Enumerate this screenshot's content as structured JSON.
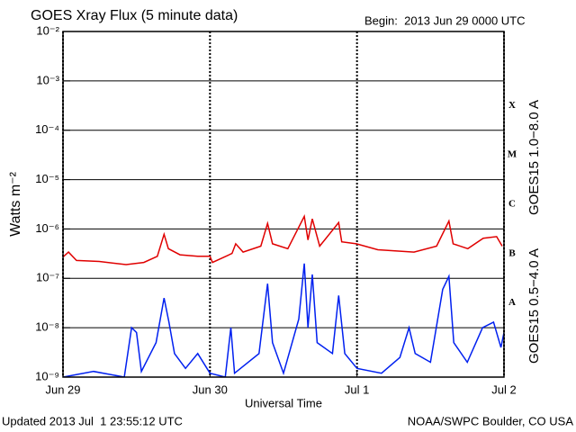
{
  "chart_data": {
    "type": "line",
    "title": "GOES Xray Flux (5 minute data)",
    "subtitle": "Begin:  2013 Jun 29 0000 UTC",
    "x_label": "Universal Time",
    "y_label": "Watts m⁻²",
    "footer_left": "Updated 2013 Jul  1 23:55:12 UTC",
    "footer_right": "NOAA/SWPC Boulder, CO USA",
    "log_y": true,
    "grid": true,
    "xlim": [
      0,
      72
    ],
    "xticks": [
      {
        "value": 0,
        "label": "Jun 29"
      },
      {
        "value": 24,
        "label": "Jun 30"
      },
      {
        "value": 48,
        "label": "Jul 1"
      },
      {
        "value": 72,
        "label": "Jul 2"
      }
    ],
    "ylim": [
      1e-09,
      0.01
    ],
    "yticks": [
      {
        "value": 1e-09,
        "label": "10⁻⁹"
      },
      {
        "value": 1e-08,
        "label": "10⁻⁸"
      },
      {
        "value": 1e-07,
        "label": "10⁻⁷"
      },
      {
        "value": 1e-06,
        "label": "10⁻⁶"
      },
      {
        "value": 1e-05,
        "label": "10⁻⁵"
      },
      {
        "value": 0.0001,
        "label": "10⁻⁴"
      },
      {
        "value": 0.001,
        "label": "10⁻³"
      },
      {
        "value": 0.01,
        "label": "10⁻²"
      }
    ],
    "flare_classes": [
      {
        "label": "X",
        "value": 0.0001
      },
      {
        "label": "M",
        "value": 1e-05
      },
      {
        "label": "C",
        "value": 1e-06
      },
      {
        "label": "B",
        "value": 1e-07
      },
      {
        "label": "A",
        "value": 1e-08
      }
    ],
    "series": [
      {
        "name": "GOES15 1.0−8.0 A",
        "color": "#e00000",
        "x": [
          0,
          0.9,
          2.2,
          5.9,
          10.3,
          13.2,
          15.4,
          16.5,
          17.2,
          19.1,
          22,
          24,
          24.4,
          27.6,
          28.2,
          29.4,
          32.3,
          33.4,
          34.2,
          36.7,
          39.4,
          40,
          40.7,
          41.9,
          45,
          45.5,
          47.9,
          51.4,
          57.3,
          61,
          63,
          63.7,
          66.1,
          68.6,
          70.8,
          71.7
        ],
        "values": [
          2.7e-07,
          3.4e-07,
          2.3e-07,
          2.2e-07,
          1.9e-07,
          2.1e-07,
          2.8e-07,
          7.8e-07,
          4e-07,
          3e-07,
          2.8e-07,
          2.8e-07,
          2.1e-07,
          3.2e-07,
          5e-07,
          3.4e-07,
          4.5e-07,
          1.3e-06,
          5e-07,
          4e-07,
          1.8e-06,
          6e-07,
          1.6e-06,
          4.5e-07,
          1.35e-06,
          5.5e-07,
          5e-07,
          3.8e-07,
          3.4e-07,
          4.5e-07,
          1.45e-06,
          5e-07,
          4e-07,
          6.5e-07,
          7e-07,
          4.5e-07
        ]
      },
      {
        "name": "GOES15 0.5−4.0 A",
        "color": "#0020f0",
        "x": [
          0,
          5,
          10,
          11.2,
          12,
          12.8,
          15.2,
          16.5,
          17.3,
          18.2,
          20,
          22,
          24,
          26.5,
          27.4,
          28,
          32,
          33.4,
          34.2,
          36,
          38.5,
          39.4,
          40,
          40.7,
          41.5,
          44,
          45,
          46,
          48,
          52,
          55,
          56.5,
          57.5,
          60,
          62,
          63,
          63.8,
          66,
          68.5,
          70.3,
          71.5,
          72
        ],
        "values": [
          1e-09,
          1.3e-09,
          1e-09,
          1e-08,
          8e-09,
          1.3e-09,
          5e-09,
          4e-08,
          1.3e-08,
          3e-09,
          1.5e-09,
          3e-09,
          1.2e-09,
          1e-09,
          1e-08,
          1.2e-09,
          3e-09,
          7.8e-08,
          5e-09,
          1.2e-09,
          1.5e-08,
          2e-07,
          1e-08,
          1.2e-07,
          5e-09,
          3e-09,
          4.5e-08,
          3e-09,
          1.5e-09,
          1.2e-09,
          2.5e-09,
          1e-08,
          3e-09,
          2e-09,
          6e-08,
          1.1e-07,
          5e-09,
          2e-09,
          1e-08,
          1.3e-08,
          4e-09,
          8e-09
        ]
      }
    ]
  }
}
